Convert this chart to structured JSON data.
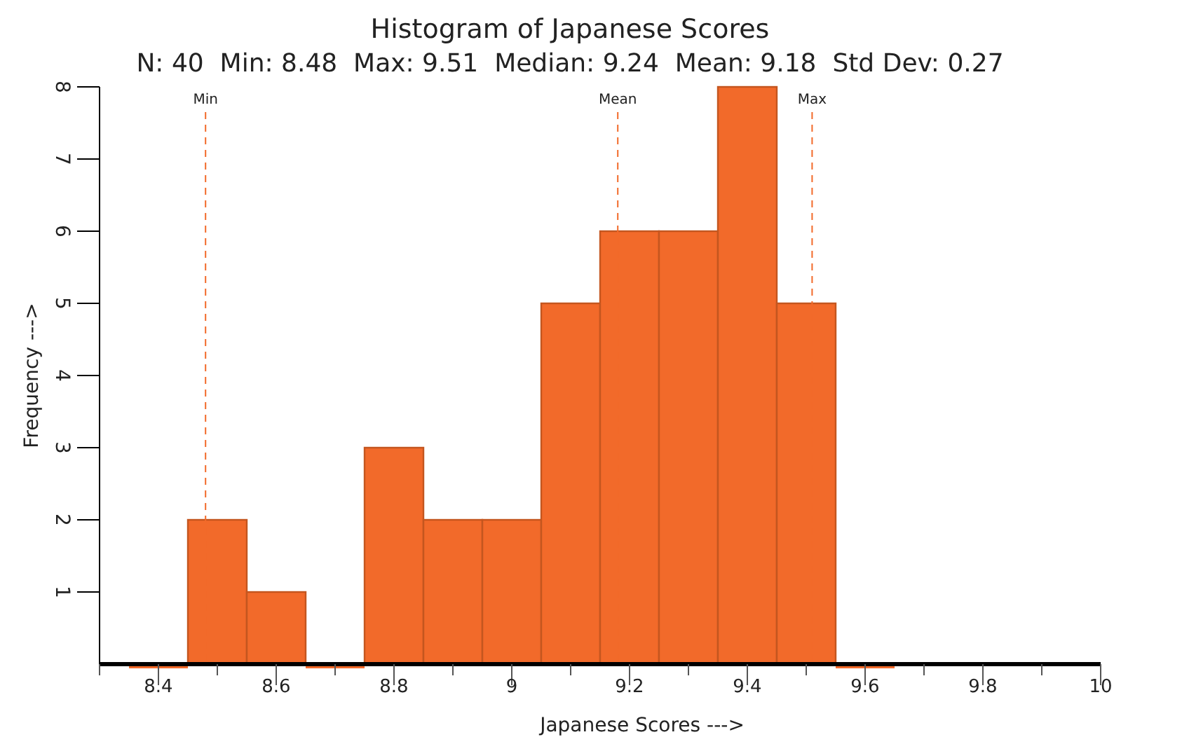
{
  "chart_data": {
    "type": "histogram",
    "title": "Histogram of Japanese Scores",
    "subtitle": "N: 40  Min: 8.48  Max: 9.51  Median: 9.24  Mean: 9.18  Std Dev: 0.27",
    "xlabel": "Japanese Scores --->",
    "ylabel": "Frequency --->",
    "bins": [
      8.35,
      8.45,
      8.55,
      8.65,
      8.75,
      8.85,
      8.95,
      9.05,
      9.15,
      9.25,
      9.35,
      9.45,
      9.55,
      9.65
    ],
    "values": [
      0,
      2,
      1,
      0,
      3,
      2,
      2,
      5,
      6,
      6,
      8,
      5,
      0
    ],
    "color": "#f26a2a",
    "xlim": [
      8.3,
      10
    ],
    "xticks": [
      {
        "value": 8.3,
        "label": null
      },
      8.4,
      {
        "value": 8.5,
        "label": null
      },
      8.6,
      {
        "value": 8.7,
        "label": null
      },
      8.8,
      {
        "value": 8.9,
        "label": null
      },
      9,
      {
        "value": 9.1,
        "label": null
      },
      9.2,
      {
        "value": 9.3,
        "label": null
      },
      9.4,
      {
        "value": 9.5,
        "label": null
      },
      9.6,
      {
        "value": 9.7,
        "label": null
      },
      9.8,
      {
        "value": 9.9,
        "label": null
      },
      10
    ],
    "ylim": [
      0,
      8
    ],
    "yticks": [
      1,
      2,
      3,
      4,
      5,
      6,
      7,
      8
    ],
    "grid": false,
    "ref_lines": [
      {
        "axis": "x",
        "value": 8.48,
        "label": "Min",
        "color": "#f26a2a",
        "line_style": "dashed"
      },
      {
        "axis": "x",
        "value": 9.18,
        "label": "Mean",
        "color": "#f26a2a",
        "line_style": "dashed"
      },
      {
        "axis": "x",
        "value": 9.51,
        "label": "Max",
        "color": "#f26a2a",
        "line_style": "dashed"
      }
    ]
  }
}
